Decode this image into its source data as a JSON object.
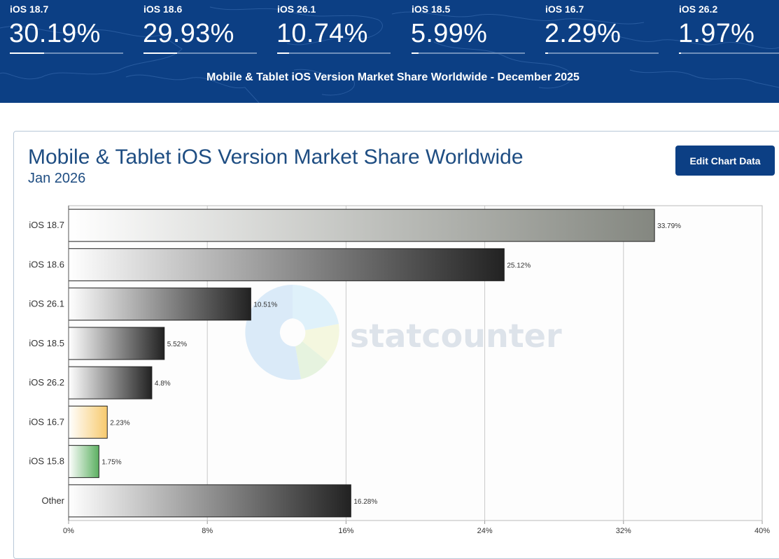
{
  "banner": {
    "stats": [
      {
        "label": "iOS 18.7",
        "value": "30.19%",
        "share": 30.19
      },
      {
        "label": "iOS 18.6",
        "value": "29.93%",
        "share": 29.93
      },
      {
        "label": "iOS 26.1",
        "value": "10.74%",
        "share": 10.74
      },
      {
        "label": "iOS 18.5",
        "value": "5.99%",
        "share": 5.99
      },
      {
        "label": "iOS 16.7",
        "value": "2.29%",
        "share": 2.29
      },
      {
        "label": "iOS 26.2",
        "value": "1.97%",
        "share": 1.97
      }
    ],
    "caption": "Mobile & Tablet iOS Version Market Share Worldwide - December 2025"
  },
  "panel": {
    "title": "Mobile & Tablet iOS Version Market Share Worldwide",
    "subtitle": "Jan 2026",
    "edit_button": "Edit Chart Data"
  },
  "watermark": "statcounter",
  "chart_data": {
    "type": "bar",
    "orientation": "horizontal",
    "title": "Mobile & Tablet iOS Version Market Share Worldwide",
    "subtitle": "Jan 2026",
    "categories": [
      "iOS 18.7",
      "iOS 18.6",
      "iOS 26.1",
      "iOS 18.5",
      "iOS 26.2",
      "iOS 16.7",
      "iOS 15.8",
      "Other"
    ],
    "values": [
      33.79,
      25.12,
      10.51,
      5.52,
      4.8,
      2.23,
      1.75,
      16.28
    ],
    "data_labels": [
      "33.79%",
      "25.12%",
      "10.51%",
      "5.52%",
      "4.8%",
      "2.23%",
      "1.75%",
      "16.28%"
    ],
    "xlim": [
      0,
      40
    ],
    "xticks": [
      0,
      8,
      16,
      24,
      32,
      40
    ],
    "xtick_labels": [
      "0%",
      "8%",
      "16%",
      "24%",
      "32%",
      "40%"
    ],
    "grid": true,
    "bar_colors": [
      "#848780",
      "#222222",
      "#222222",
      "#222222",
      "#222222",
      "#f7ca6e",
      "#5cb061",
      "#222222"
    ],
    "xlabel": "",
    "ylabel": ""
  }
}
